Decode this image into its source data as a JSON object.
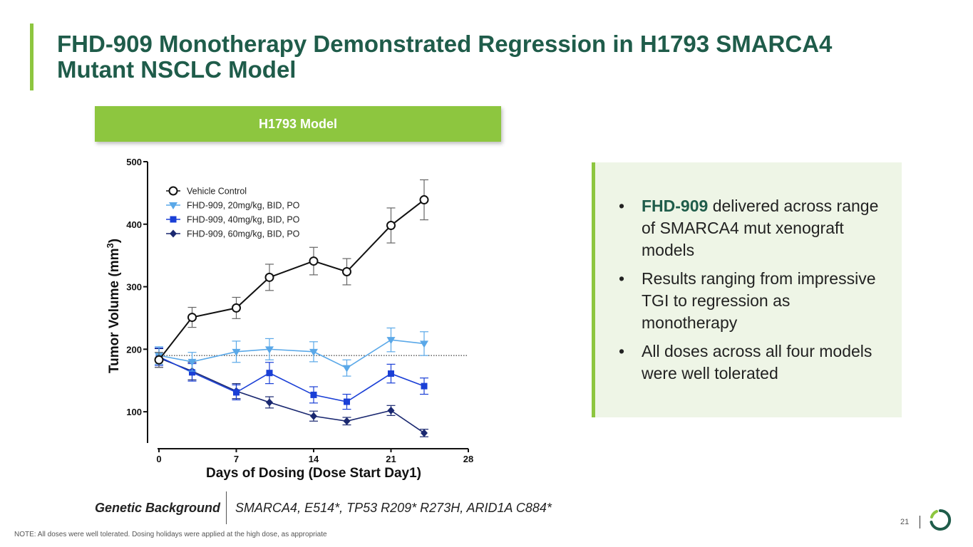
{
  "title": "FHD-909 Monotherapy Demonstrated Regression in H1793 SMARCA4 Mutant NSCLC Model",
  "model_label": "H1793 Model",
  "colors": {
    "accent_green": "#8dc63f",
    "title_green": "#1f5c4a",
    "vehicle": "#111111",
    "dose20": "#5aa8e8",
    "dose40": "#1a3fd6",
    "dose60": "#1a2870"
  },
  "chart_data": {
    "type": "line",
    "xlabel": "Days of Dosing (Dose Start Day1)",
    "ylabel": "Tumor Volume (mm3)",
    "ylabel_main": "Tumor Volume (mm",
    "ylabel_sup": "3",
    "ylabel_close": ")",
    "xlim": [
      0,
      28
    ],
    "ylim": [
      50,
      500
    ],
    "xticks": [
      0,
      7,
      14,
      21,
      28
    ],
    "yticks": [
      100,
      200,
      300,
      400,
      500
    ],
    "reference_line_y": 190,
    "legend_position": "top-left",
    "series": [
      {
        "name": "Vehicle Control",
        "marker": "open-circle",
        "x": [
          0,
          3,
          7,
          10,
          14,
          17,
          21,
          24
        ],
        "y": [
          183,
          251,
          266,
          315,
          341,
          324,
          398,
          439
        ],
        "err": [
          12,
          16,
          17,
          21,
          22,
          21,
          28,
          32
        ]
      },
      {
        "name": "FHD-909, 20mg/kg, BID, PO",
        "marker": "triangle-down",
        "x": [
          0,
          3,
          7,
          10,
          14,
          17,
          21,
          24
        ],
        "y": [
          190,
          180,
          196,
          200,
          196,
          170,
          215,
          209
        ],
        "err": [
          14,
          15,
          17,
          17,
          16,
          13,
          19,
          19
        ]
      },
      {
        "name": "FHD-909, 40mg/kg, BID, PO",
        "marker": "square",
        "x": [
          0,
          3,
          7,
          10,
          14,
          17,
          21,
          24
        ],
        "y": [
          188,
          163,
          131,
          162,
          127,
          116,
          161,
          141
        ],
        "err": [
          14,
          14,
          12,
          17,
          13,
          12,
          15,
          13
        ]
      },
      {
        "name": "FHD-909, 60mg/kg, BID, PO",
        "marker": "diamond",
        "x": [
          0,
          3,
          7,
          10,
          14,
          17,
          21,
          24
        ],
        "y": [
          186,
          165,
          133,
          115,
          93,
          85,
          102,
          66
        ],
        "err": [
          15,
          14,
          12,
          9,
          8,
          6,
          8,
          6
        ]
      }
    ]
  },
  "callout": {
    "items": [
      {
        "bullet": "•",
        "bold": "FHD-909",
        "text": " delivered across range of SMARCA4 mut xenograft models"
      },
      {
        "bullet": "•",
        "bold": "",
        "text": "Results ranging from impressive TGI to regression as monotherapy"
      },
      {
        "bullet": "•",
        "bold": "",
        "text": "All doses across all four models were well tolerated"
      }
    ]
  },
  "genetic": {
    "label": "Genetic Background",
    "value": "SMARCA4, E514*, TP53 R209* R273H, ARID1A C884*"
  },
  "note": "NOTE: All doses were well tolerated. Dosing holidays were applied at the high dose, as appropriate",
  "page_number": "21",
  "logo_icon": "circular-logo-icon"
}
